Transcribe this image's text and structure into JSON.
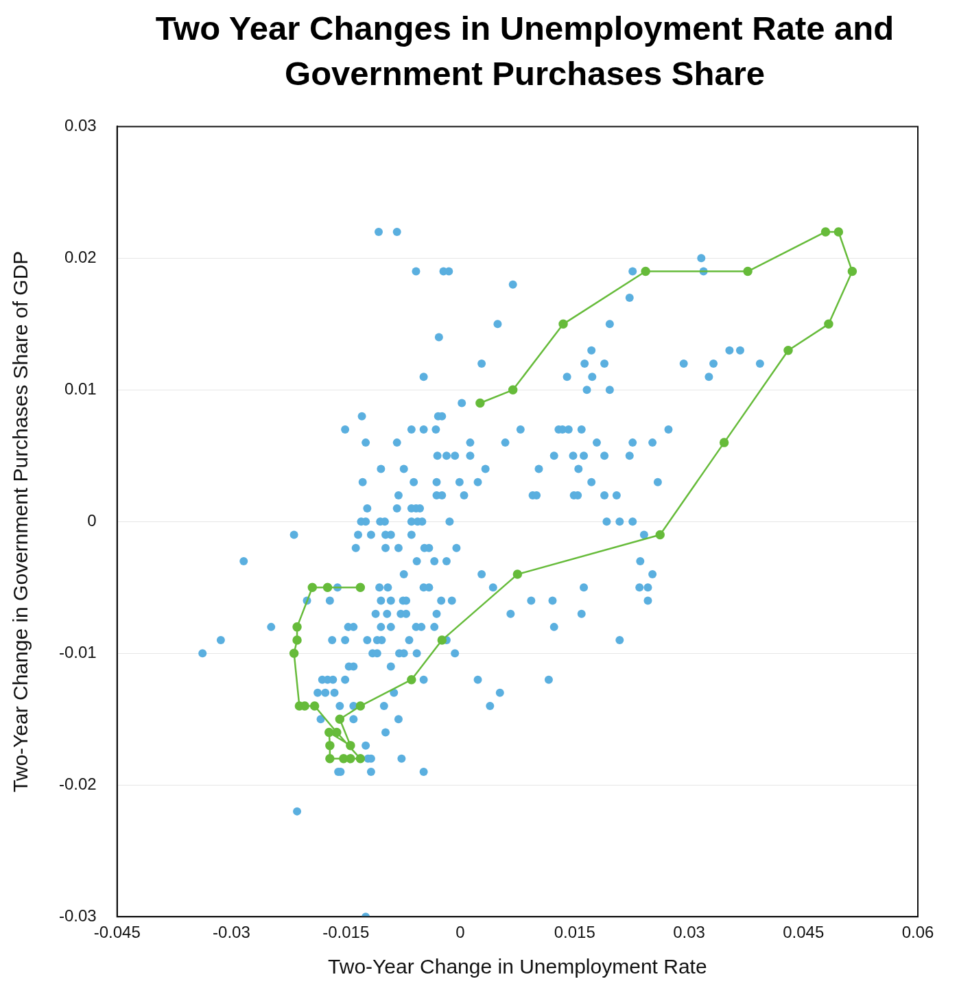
{
  "chart_data": {
    "type": "scatter",
    "title": "Two Year Changes in Unemployment Rate and Government Purchases Share",
    "xlabel": "Two-Year Change in Unemployment Rate",
    "ylabel": "Two-Year Change in Government Purchases Share of GDP",
    "xlim": [
      -0.045,
      0.06
    ],
    "xticks": [
      -0.045,
      -0.03,
      -0.015,
      0,
      0.015,
      0.03,
      0.045,
      0.06
    ],
    "ylim": [
      -0.03,
      0.03
    ],
    "yticks": [
      -0.03,
      -0.02,
      -0.01,
      0,
      0.01,
      0.02,
      0.03
    ],
    "grid": "y",
    "legend": false,
    "marker": "circle",
    "series": [
      {
        "color": "#5aafdf",
        "x": [
          -0.0107,
          -0.0083,
          -0.0058,
          -0.0022,
          -0.0015,
          0.0069,
          0.0049,
          -0.0028,
          0.0028,
          -0.0048,
          0.0002,
          -0.0029,
          -0.0024,
          -0.0129,
          -0.0151,
          -0.0124,
          -0.0083,
          -0.0064,
          -0.0048,
          -0.0032,
          0.0013,
          0.0059,
          0.0079,
          -0.0104,
          -0.0074,
          0.0033,
          0.0103,
          -0.0128,
          -0.0061,
          -0.0031,
          -0.0001,
          0.0023,
          -0.003,
          -0.0018,
          -0.0007,
          0.0013,
          -0.0081,
          -0.0031,
          -0.0024,
          0.0005,
          -0.0122,
          -0.0083,
          -0.0064,
          -0.0058,
          -0.0053,
          -0.013,
          -0.0124,
          -0.0105,
          -0.0099,
          -0.0064,
          -0.0056,
          -0.005,
          -0.0014,
          -0.0218,
          -0.0134,
          -0.0117,
          -0.0098,
          -0.0091,
          -0.0064,
          -0.0137,
          -0.0098,
          -0.0081,
          -0.0047,
          -0.0041,
          -0.0005,
          -0.0284,
          -0.0057,
          -0.0034,
          -0.0018,
          -0.0074,
          -0.0106,
          -0.0095,
          -0.0048,
          -0.0041,
          -0.0161,
          -0.0201,
          -0.0171,
          -0.0104,
          -0.0091,
          -0.0075,
          -0.0071,
          -0.0025,
          -0.0011,
          -0.0111,
          -0.0096,
          -0.0078,
          -0.0071,
          -0.0031,
          -0.0248,
          -0.0147,
          -0.014,
          -0.0104,
          -0.0091,
          -0.0058,
          -0.0051,
          -0.0034,
          -0.0314,
          -0.0168,
          -0.0151,
          -0.0122,
          -0.0109,
          -0.0103,
          -0.0067,
          -0.0018,
          -0.0338,
          -0.0115,
          -0.0109,
          -0.008,
          -0.0074,
          -0.0057,
          -0.0007,
          -0.0146,
          -0.014,
          -0.0091,
          -0.0181,
          -0.0174,
          -0.0167,
          -0.0151,
          -0.0048,
          0.0023,
          -0.0187,
          -0.0177,
          -0.0165,
          -0.0087,
          0.0052,
          -0.0158,
          -0.014,
          -0.01,
          0.0039,
          -0.0183,
          -0.014,
          -0.0081,
          -0.0098,
          -0.0124,
          -0.0121,
          -0.0117,
          -0.0077,
          -0.016,
          -0.0157,
          -0.0117,
          -0.0048,
          -0.0214,
          -0.0124,
          0.0116,
          0.0066,
          0.0093,
          0.0121,
          0.0123,
          0.0159,
          0.0162,
          0.0028,
          0.0043,
          0.0209,
          0.0236,
          0.0235,
          0.0246,
          0.0252,
          0.0246,
          0.0241,
          0.0192,
          0.0209,
          0.0226,
          0.0189,
          0.0205,
          0.0259,
          0.0172,
          0.0149,
          0.0154,
          0.0095,
          0.01,
          0.0155,
          0.0123,
          0.0148,
          0.0162,
          0.0189,
          0.0222,
          0.0179,
          0.0226,
          0.0252,
          0.0273,
          0.0129,
          0.0134,
          0.0142,
          0.0159,
          0.0166,
          0.0196,
          0.0163,
          0.0189,
          0.0173,
          0.014,
          0.0172,
          0.0196,
          0.0222,
          0.0226,
          0.0316,
          0.0319,
          0.0293,
          0.0332,
          0.0326,
          0.0353,
          0.0367,
          0.0393
        ],
        "values": [
          0.022,
          0.022,
          0.019,
          0.019,
          0.019,
          0.018,
          0.015,
          0.014,
          0.012,
          0.011,
          0.009,
          0.008,
          0.008,
          0.008,
          0.007,
          0.006,
          0.006,
          0.007,
          0.007,
          0.007,
          0.006,
          0.006,
          0.007,
          0.004,
          0.004,
          0.004,
          0.004,
          0.003,
          0.003,
          0.003,
          0.003,
          0.003,
          0.005,
          0.005,
          0.005,
          0.005,
          0.002,
          0.002,
          0.002,
          0.002,
          0.001,
          0.001,
          0.001,
          0.001,
          0.001,
          0,
          0,
          0,
          0,
          0,
          0,
          0,
          0,
          -0.001,
          -0.001,
          -0.001,
          -0.001,
          -0.001,
          -0.001,
          -0.002,
          -0.002,
          -0.002,
          -0.002,
          -0.002,
          -0.002,
          -0.003,
          -0.003,
          -0.003,
          -0.003,
          -0.004,
          -0.005,
          -0.005,
          -0.005,
          -0.005,
          -0.005,
          -0.006,
          -0.006,
          -0.006,
          -0.006,
          -0.006,
          -0.006,
          -0.006,
          -0.006,
          -0.007,
          -0.007,
          -0.007,
          -0.007,
          -0.007,
          -0.008,
          -0.008,
          -0.008,
          -0.008,
          -0.008,
          -0.008,
          -0.008,
          -0.008,
          -0.009,
          -0.009,
          -0.009,
          -0.009,
          -0.009,
          -0.009,
          -0.009,
          -0.009,
          -0.01,
          -0.01,
          -0.01,
          -0.01,
          -0.01,
          -0.01,
          -0.01,
          -0.011,
          -0.011,
          -0.011,
          -0.012,
          -0.012,
          -0.012,
          -0.012,
          -0.012,
          -0.012,
          -0.013,
          -0.013,
          -0.013,
          -0.013,
          -0.013,
          -0.014,
          -0.014,
          -0.014,
          -0.014,
          -0.015,
          -0.015,
          -0.015,
          -0.016,
          -0.017,
          -0.018,
          -0.018,
          -0.018,
          -0.019,
          -0.019,
          -0.019,
          -0.019,
          -0.022,
          -0.03,
          -0.012,
          -0.007,
          -0.006,
          -0.006,
          -0.008,
          -0.007,
          -0.005,
          -0.004,
          -0.005,
          -0.009,
          -0.003,
          -0.005,
          -0.005,
          -0.004,
          -0.006,
          -0.001,
          0,
          0,
          0,
          0.002,
          0.002,
          0.003,
          0.003,
          0.002,
          0.002,
          0.002,
          0.002,
          0.004,
          0.005,
          0.005,
          0.005,
          0.005,
          0.005,
          0.006,
          0.006,
          0.006,
          0.007,
          0.007,
          0.007,
          0.007,
          0.007,
          0.01,
          0.01,
          0.012,
          0.012,
          0.011,
          0.011,
          0.013,
          0.015,
          0.017,
          0.019,
          0.02,
          0.019,
          0.012,
          0.012,
          0.011,
          0.013,
          0.013,
          0.012
        ]
      },
      {
        "type": "line",
        "color": "#66bb3a",
        "x": [
          -0.0131,
          -0.0174,
          -0.0194,
          -0.0214,
          -0.0214,
          -0.0218,
          -0.0211,
          -0.0204,
          -0.0191,
          -0.0162,
          -0.0131,
          -0.0144,
          -0.0153,
          -0.0171,
          -0.0171,
          -0.0172,
          -0.0144,
          -0.0158,
          -0.0131,
          -0.0064,
          -0.0024,
          0.0075,
          0.0262,
          0.0346,
          0.043,
          0.0483,
          0.0514,
          0.0496,
          0.0479,
          0.0377,
          0.0243,
          0.0135,
          0.0069,
          0.0026
        ],
        "values": [
          -0.005,
          -0.005,
          -0.005,
          -0.008,
          -0.009,
          -0.01,
          -0.014,
          -0.014,
          -0.014,
          -0.016,
          -0.018,
          -0.018,
          -0.018,
          -0.018,
          -0.017,
          -0.016,
          -0.017,
          -0.015,
          -0.014,
          -0.012,
          -0.009,
          -0.004,
          -0.001,
          0.006,
          0.013,
          0.015,
          0.019,
          0.022,
          0.022,
          0.019,
          0.019,
          0.015,
          0.01,
          0.009
        ]
      }
    ]
  }
}
